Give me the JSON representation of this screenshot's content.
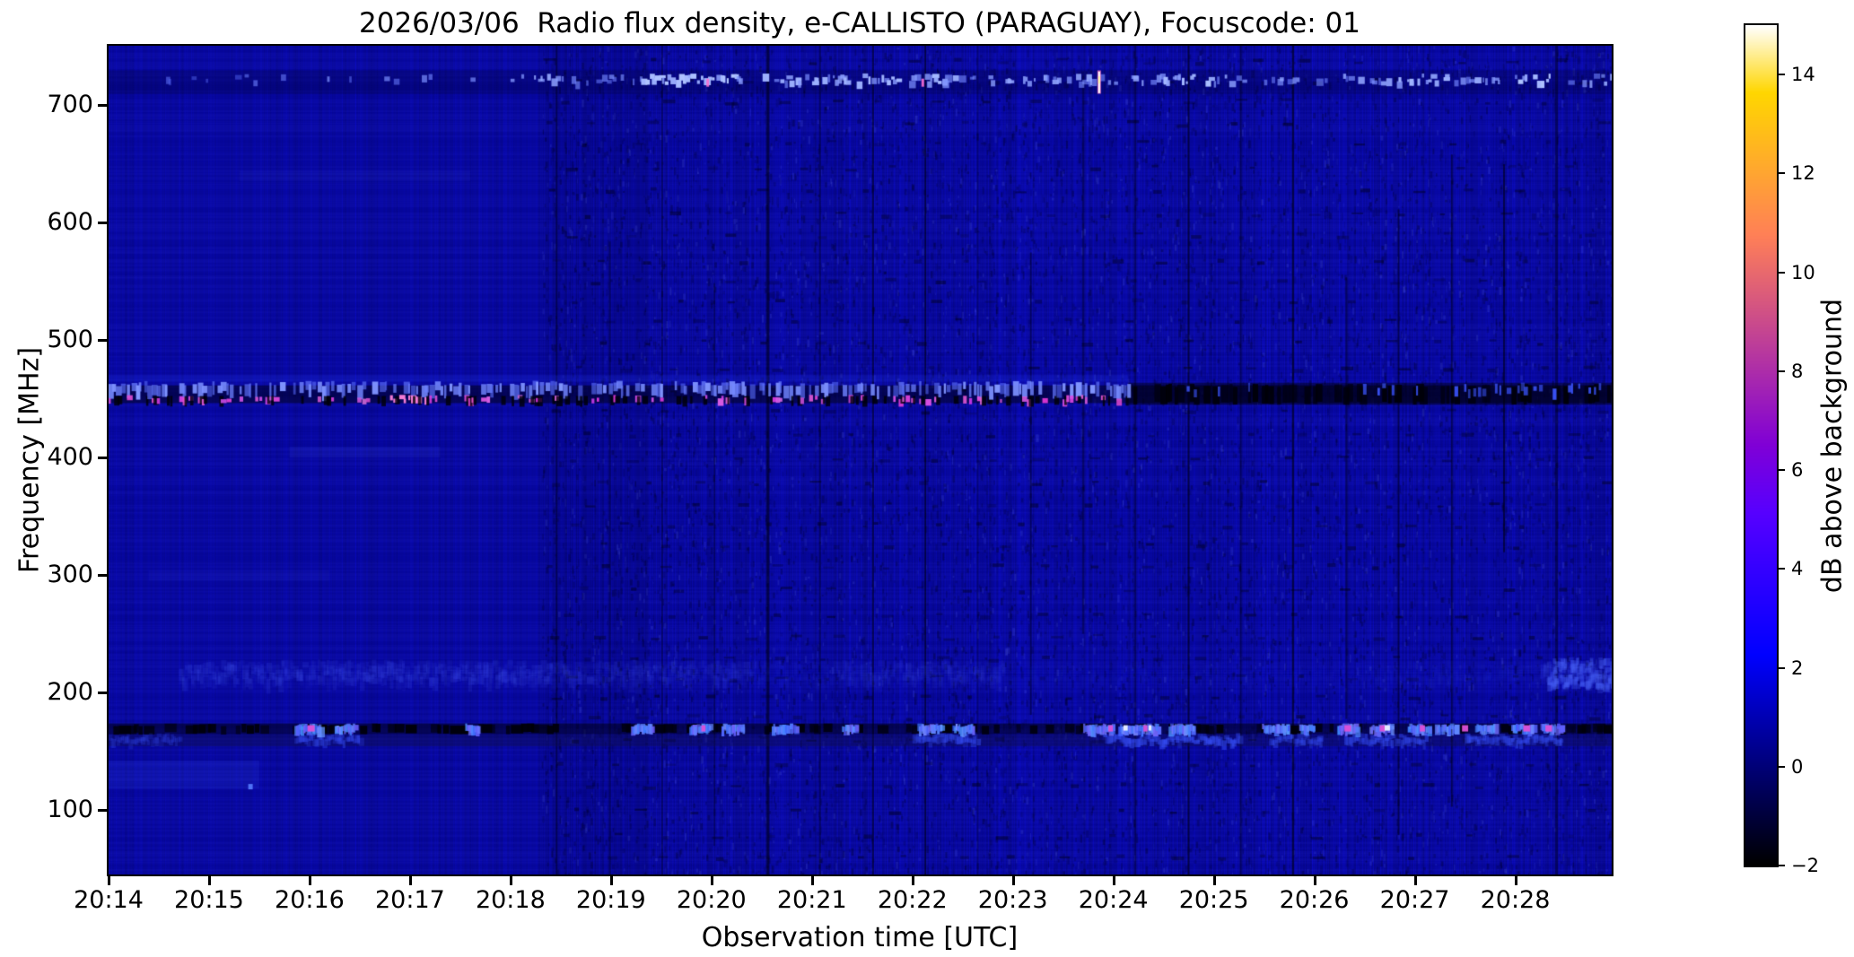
{
  "chart_data": {
    "type": "heatmap",
    "subtype": "radio-spectrogram",
    "title": "2026/03/06  Radio flux density, e-CALLISTO (PARAGUAY), Focuscode: 01",
    "xlabel": "Observation time [UTC]",
    "ylabel": "Frequency [MHz]",
    "x_tick_labels": [
      "20:14",
      "20:15",
      "20:16",
      "20:17",
      "20:18",
      "20:19",
      "20:20",
      "20:21",
      "20:22",
      "20:23",
      "20:24",
      "20:25",
      "20:26",
      "20:27",
      "20:28"
    ],
    "x_tick_minutes": [
      14,
      15,
      16,
      17,
      18,
      19,
      20,
      21,
      22,
      23,
      24,
      25,
      26,
      27,
      28
    ],
    "x_range_minutes": [
      14.0,
      28.96
    ],
    "y_ticks_mhz": [
      700,
      600,
      500,
      400,
      300,
      200,
      100
    ],
    "y_range_mhz": [
      45,
      750
    ],
    "grid": false,
    "colorbar": {
      "label": "dB above background",
      "ticks": [
        14,
        12,
        10,
        8,
        6,
        4,
        2,
        0,
        -2
      ],
      "range_db": [
        -2,
        15
      ],
      "colormap": "gnuplot2",
      "position": "right"
    },
    "background_level_db": 0.7,
    "background_color_hex": "#0202A0",
    "accent_colors": {
      "bright_blue": "#3C5AFF",
      "magenta": "#D644D2",
      "pink": "#FF82DC",
      "white_flash": "#FFFFFF",
      "black_rfi": "#000010"
    },
    "features": {
      "texture_change_min": 18.31,
      "dark_column_lines_min": [
        18.45,
        18.98,
        19.5,
        20.02,
        20.55,
        21.07,
        21.6,
        22.12,
        22.64,
        23.17,
        23.69,
        24.21,
        24.74,
        25.26,
        25.78,
        26.31,
        26.83,
        27.36,
        27.88,
        28.4
      ],
      "bands": [
        {
          "name": "band-720",
          "freq_mhz": [
            709,
            729
          ],
          "style": "faint dark strip with intermittent bright blue dashes",
          "segments": [
            [
              14.0,
              18.0,
              0.08
            ],
            [
              18.0,
              18.45,
              0.35
            ],
            [
              18.45,
              19.3,
              0.25
            ],
            [
              19.3,
              20.25,
              0.5
            ],
            [
              20.25,
              21.3,
              0.35
            ],
            [
              21.3,
              22.3,
              0.4
            ],
            [
              22.3,
              23.4,
              0.3
            ],
            [
              23.4,
              24.5,
              0.3
            ],
            [
              24.5,
              25.0,
              0.5
            ],
            [
              25.0,
              26.8,
              0.25
            ],
            [
              26.8,
              27.3,
              0.45
            ],
            [
              27.3,
              28.0,
              0.3
            ],
            [
              28.0,
              28.4,
              0.5
            ],
            [
              28.4,
              28.96,
              0.3
            ]
          ],
          "magenta_dashes_min": [
            19.95,
            22.09
          ],
          "white_flash_min": 23.85
        },
        {
          "name": "band-453",
          "freq_mhz": [
            444,
            462
          ],
          "style": "strong dashed RFI: bright blue dashes with magenta cores on left, mostly black on right",
          "bright_until_min": 24.15,
          "pink_cluster_min": [
            16.7,
            17.15
          ],
          "right_blue_clusters_min": [
            [
              27.5,
              28.1
            ],
            [
              28.5,
              28.96
            ]
          ],
          "right_magenta_min": [
            25.0,
            25.8
          ]
        },
        {
          "name": "band-215",
          "freq_mhz": [
            206,
            228
          ],
          "style": "diffuse faint light-blue haze",
          "segments": [
            [
              14.7,
              18.4,
              0.42
            ],
            [
              18.4,
              20.4,
              0.3
            ],
            [
              20.4,
              21.3,
              0.14
            ],
            [
              21.3,
              22.9,
              0.28
            ],
            [
              22.9,
              26.6,
              0.1
            ],
            [
              26.6,
              28.2,
              0.15
            ],
            [
              28.25,
              28.96,
              0.5
            ]
          ]
        },
        {
          "name": "band-165",
          "freq_mhz": [
            154,
            173
          ],
          "style": "dark dashed RFI row with bright blue / white / magenta bursts and darker strip below",
          "blue_segments": [
            [
              15.85,
              16.12
            ],
            [
              16.25,
              16.45
            ],
            [
              17.55,
              17.68
            ],
            [
              19.2,
              19.42
            ],
            [
              19.78,
              19.98
            ],
            [
              20.1,
              20.32
            ],
            [
              20.6,
              20.85
            ],
            [
              21.3,
              21.45
            ],
            [
              22.05,
              22.3
            ],
            [
              22.4,
              22.6
            ],
            [
              23.7,
              24.0
            ],
            [
              24.05,
              24.45
            ],
            [
              24.55,
              24.8
            ],
            [
              25.48,
              25.75
            ],
            [
              25.85,
              26.0
            ],
            [
              26.23,
              26.42
            ],
            [
              26.55,
              26.78
            ],
            [
              26.93,
              27.15
            ],
            [
              27.2,
              27.4
            ],
            [
              27.6,
              27.8
            ],
            [
              27.96,
              28.2
            ],
            [
              28.25,
              28.45
            ]
          ],
          "magenta_min": [
            15.98,
            19.9,
            23.95,
            24.3,
            26.3,
            26.65,
            27.05,
            27.47,
            28.08,
            28.3
          ],
          "white_min": [
            24.1,
            24.35,
            26.7
          ],
          "under_segments": [
            [
              14.0,
              14.7,
              0.3
            ],
            [
              15.85,
              16.5,
              0.5
            ],
            [
              22.0,
              22.65,
              0.5
            ],
            [
              23.9,
              25.25,
              0.6
            ],
            [
              25.55,
              26.05,
              0.5
            ],
            [
              26.3,
              27.1,
              0.55
            ],
            [
              27.5,
              28.45,
              0.55
            ]
          ]
        }
      ],
      "point_source": {
        "time_min": 15.39,
        "freq_mhz": 122
      },
      "corner_haze": {
        "time_min": [
          14.0,
          15.5
        ],
        "freq_mhz": [
          118,
          142
        ]
      },
      "right_edge_blob": {
        "time_min": [
          28.3,
          28.96
        ],
        "freq_mhz": [
          206,
          230
        ]
      }
    }
  }
}
